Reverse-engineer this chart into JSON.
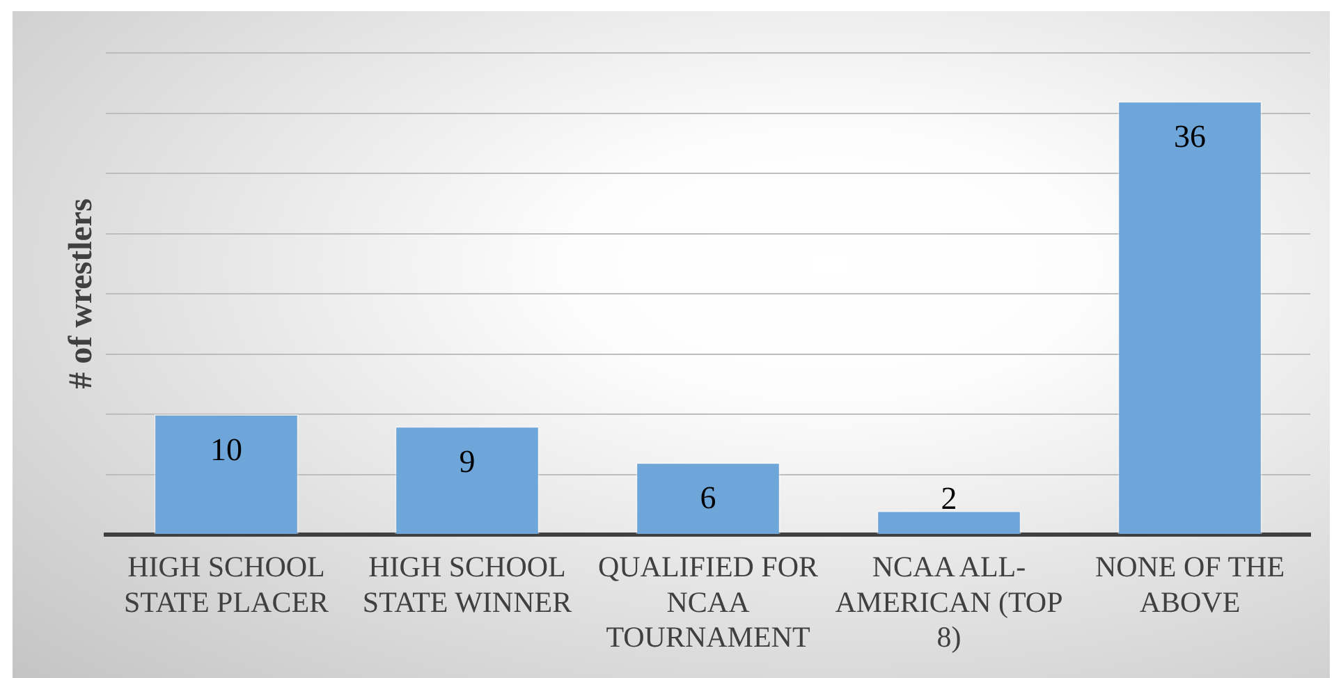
{
  "chart_data": {
    "type": "bar",
    "ylabel": "# of wrestlers",
    "categories": [
      "HIGH SCHOOL STATE PLACER",
      "HIGH SCHOOL STATE WINNER",
      "QUALIFIED FOR NCAA TOURNAMENT",
      "NCAA ALL-AMERICAN (TOP 8)",
      "NONE OF THE ABOVE"
    ],
    "values": [
      10,
      9,
      6,
      2,
      36
    ],
    "color": "#6fa6d9",
    "ylim": [
      0,
      40
    ],
    "yticks": [
      {
        "value": 0,
        "label": null
      },
      {
        "value": 5,
        "label": null
      },
      {
        "value": 10,
        "label": null
      },
      {
        "value": 15,
        "label": null
      },
      {
        "value": 20,
        "label": null
      },
      {
        "value": 25,
        "label": null
      },
      {
        "value": 30,
        "label": null
      },
      {
        "value": 35,
        "label": null
      },
      {
        "value": 40,
        "label": null
      }
    ],
    "grid": "y",
    "tick_labels": "x",
    "data_labels": true
  }
}
